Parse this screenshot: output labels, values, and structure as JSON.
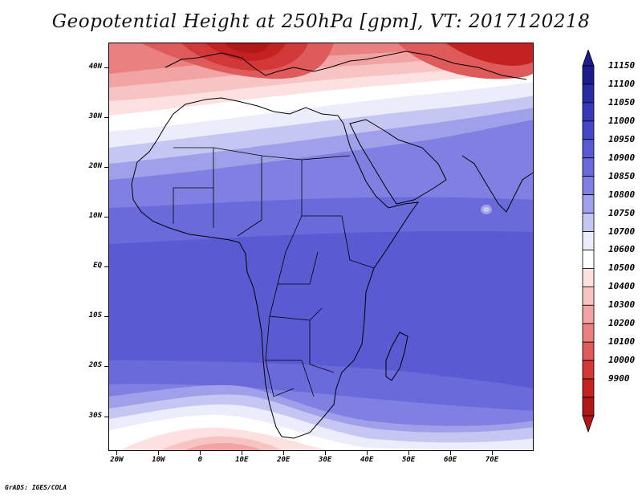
{
  "title": "Geopotential Height at 250hPa [gpm], VT: 2017120218",
  "footer": "GrADS: IGES/COLA",
  "map": {
    "lon_range": [
      -22,
      80
    ],
    "lat_range": [
      -37,
      45
    ],
    "lat_ticks": [
      {
        "value": 40,
        "label": "40N"
      },
      {
        "value": 30,
        "label": "30N"
      },
      {
        "value": 20,
        "label": "20N"
      },
      {
        "value": 10,
        "label": "10N"
      },
      {
        "value": 0,
        "label": "EQ"
      },
      {
        "value": -10,
        "label": "10S"
      },
      {
        "value": -20,
        "label": "20S"
      },
      {
        "value": -30,
        "label": "30S"
      }
    ],
    "lon_ticks": [
      {
        "value": -20,
        "label": "20W"
      },
      {
        "value": -10,
        "label": "10W"
      },
      {
        "value": 0,
        "label": "0"
      },
      {
        "value": 10,
        "label": "10E"
      },
      {
        "value": 20,
        "label": "20E"
      },
      {
        "value": 30,
        "label": "30E"
      },
      {
        "value": 40,
        "label": "40E"
      },
      {
        "value": 50,
        "label": "50E"
      },
      {
        "value": 60,
        "label": "60E"
      },
      {
        "value": 70,
        "label": "70E"
      }
    ]
  },
  "colorbar": {
    "labels": [
      "11150",
      "11100",
      "11050",
      "11000",
      "10950",
      "10900",
      "10850",
      "10800",
      "10750",
      "10700",
      "10600",
      "10500",
      "10400",
      "10300",
      "10200",
      "10100",
      "10000",
      "9900"
    ],
    "colors": [
      "#1c1c8c",
      "#2a2aa3",
      "#3838b8",
      "#4646c6",
      "#5a5ad2",
      "#6a6adb",
      "#8080e2",
      "#a0a0ea",
      "#c6c6f2",
      "#ecedfb",
      "#ffffff",
      "#fde0e0",
      "#f8c3c3",
      "#f2a3a3",
      "#ea8080",
      "#df5a5a",
      "#d33838",
      "#c42222",
      "#b01818"
    ],
    "end_colors": {
      "top": "#1c1c8c",
      "bottom": "#b01818"
    }
  },
  "field_colors": {
    "r9900": "#b01818",
    "r10000": "#c42222",
    "r10100": "#d33838",
    "r10200": "#df5a5a",
    "r10300": "#ea8080",
    "r10400": "#f2a3a3",
    "r10500": "#f8c3c3",
    "r10600": "#fde0e0",
    "r10700": "#ffffff",
    "r10750": "#ecedfb",
    "r10800": "#c6c6f2",
    "r10850": "#a0a0ea",
    "r10900": "#8080e2",
    "r10950": "#6a6adb",
    "r11000": "#5a5ad2",
    "coast": "#000000"
  }
}
